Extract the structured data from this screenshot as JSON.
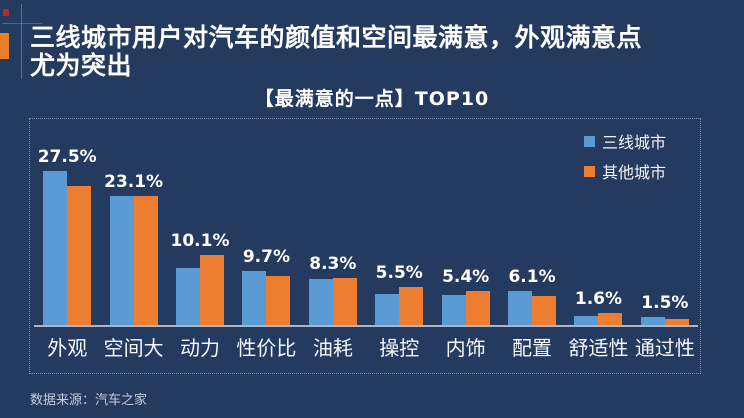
{
  "page": {
    "background": "#253A5F"
  },
  "header": {
    "title_line1": "三线城市用户对汽车的颜值和空间最满意，外观满意点",
    "title_line2": "尤为突出"
  },
  "chart": {
    "title": "【最满意的一点】TOP10"
  },
  "chart_data": {
    "type": "bar",
    "title": "【最满意的一点】TOP10",
    "categories": [
      "外观",
      "空间大",
      "动力",
      "性价比",
      "油耗",
      "操控",
      "内饰",
      "配置",
      "舒适性",
      "通过性"
    ],
    "series": [
      {
        "name": "三线城市",
        "color": "#5B9BD5",
        "values": [
          27.5,
          23.1,
          10.1,
          9.7,
          8.3,
          5.5,
          5.4,
          6.1,
          1.6,
          1.5
        ]
      },
      {
        "name": "其他城市",
        "color": "#ED7D31",
        "values": [
          24.8,
          23.0,
          12.5,
          8.7,
          8.4,
          6.8,
          6.0,
          5.2,
          2.1,
          1.1
        ]
      }
    ],
    "data_labels": [
      "27.5%",
      "23.1%",
      "10.1%",
      "9.7%",
      "8.3%",
      "5.5%",
      "5.4%",
      "6.1%",
      "1.6%",
      "1.5%"
    ],
    "ylim": [
      0,
      30
    ],
    "grid": false,
    "legend_position": "top-right"
  },
  "footer": {
    "source": "数据来源：汽车之家"
  },
  "colors": {
    "background": "#253A5F",
    "series_blue": "#5B9BD5",
    "series_orange": "#ED7D31",
    "accent_orange": "#E87E2B",
    "accent_red": "#A93226",
    "axis_line": "#AEB6C2",
    "text": "#FFFFFF"
  }
}
